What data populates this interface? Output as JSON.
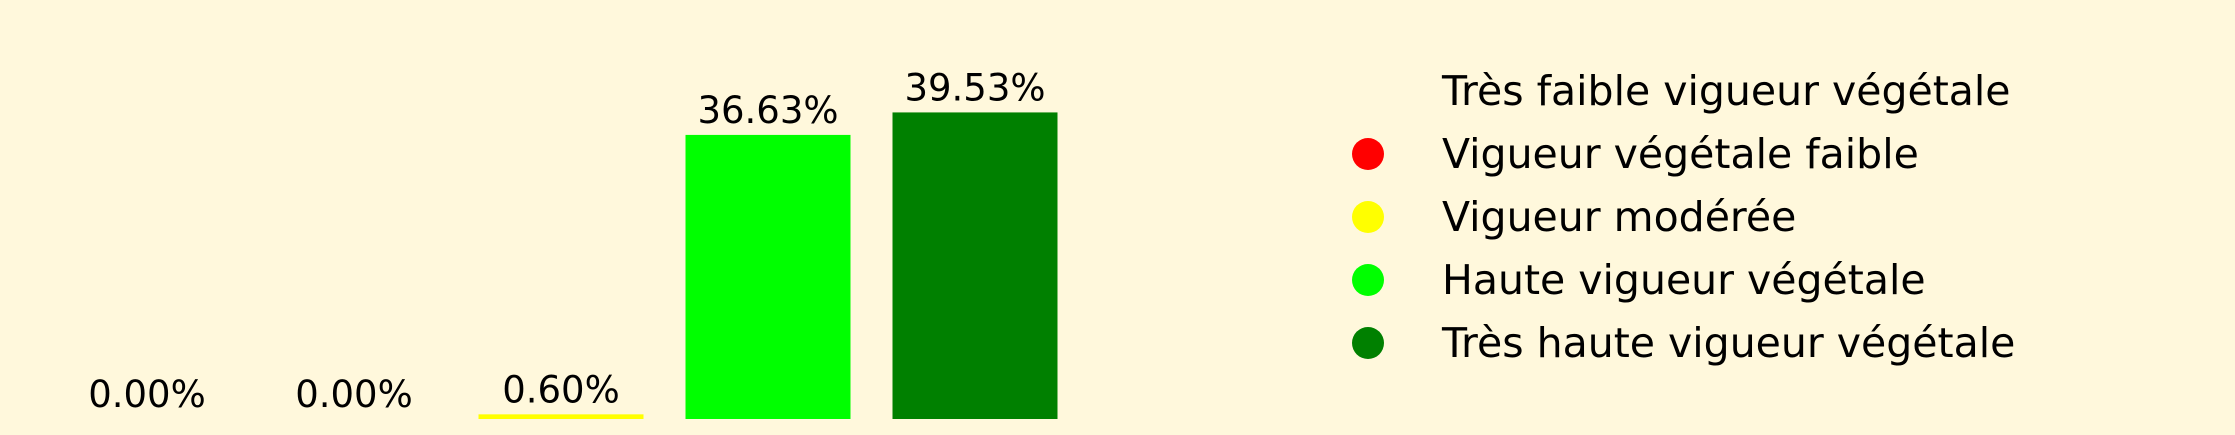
{
  "chart_data": {
    "type": "bar",
    "categories": [
      "Très faible vigueur végétale",
      "Vigueur végétale faible",
      "Vigueur modérée",
      "Haute vigueur végétale",
      "Très haute vigueur végétale"
    ],
    "values": [
      0.0,
      0.0,
      0.6,
      36.63,
      39.53
    ],
    "value_labels": [
      "0.00%",
      "0.00%",
      "0.60%",
      "36.63%",
      "39.53%"
    ],
    "colors": [
      "#FFF8DC",
      "#FF0000",
      "#FFFF00",
      "#00FF00",
      "#008000"
    ],
    "ylim": [
      0,
      45
    ],
    "grid": false,
    "legend_position": "right"
  },
  "legend": [
    {
      "label": "Très faible vigueur végétale",
      "color": "#FFF8DC"
    },
    {
      "label": "Vigueur végétale faible",
      "color": "#FF0000"
    },
    {
      "label": "Vigueur modérée",
      "color": "#FFFF00"
    },
    {
      "label": "Haute vigueur végétale",
      "color": "#00FF00"
    },
    {
      "label": "Très haute vigueur végétale",
      "color": "#008000"
    }
  ]
}
